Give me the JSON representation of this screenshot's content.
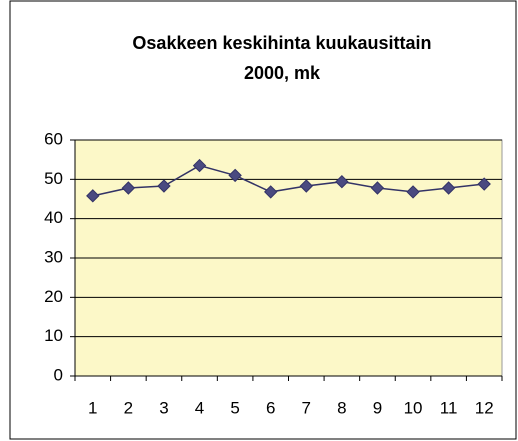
{
  "chart_data": {
    "type": "line",
    "title": "Osakkeen keskihinta kuukausittain",
    "subtitle": "2000, mk",
    "categories": [
      "1",
      "2",
      "3",
      "4",
      "5",
      "6",
      "7",
      "8",
      "9",
      "10",
      "11",
      "12"
    ],
    "values": [
      45.8,
      47.8,
      48.3,
      53.5,
      51,
      46.8,
      48.3,
      49.4,
      47.8,
      46.8,
      47.8,
      48.8
    ],
    "color": "#333366",
    "marker_color": "#4a4a80",
    "plot_background": "#fcf8c8",
    "ylim": [
      0,
      60
    ],
    "yticks": [
      0,
      10,
      20,
      30,
      40,
      50,
      60
    ],
    "grid": true
  }
}
